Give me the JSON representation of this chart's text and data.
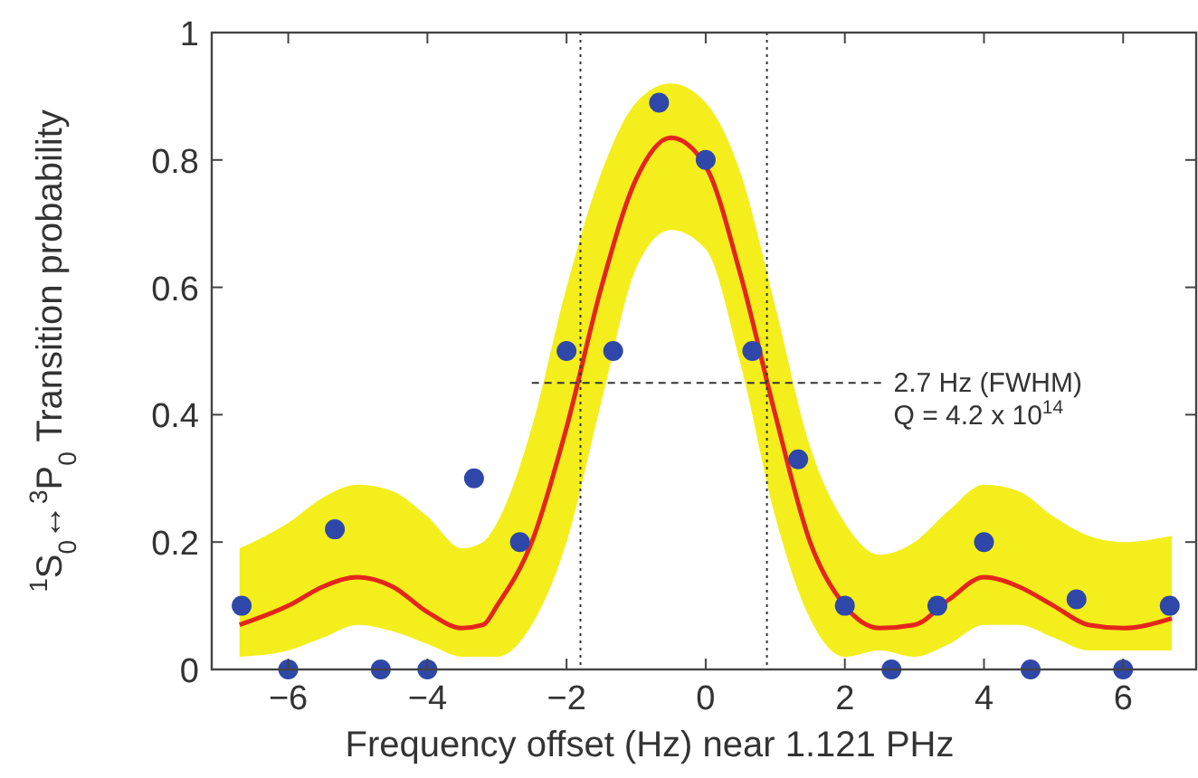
{
  "chart_data": {
    "type": "scatter",
    "xlabel": "Frequency offset (Hz) near 1.121 PHz",
    "ylabel": "$^{1}$S$_{0}$↔$^{3}$P$_{0}$ Transition probability",
    "xlim": [
      -7.1,
      7.05
    ],
    "ylim": [
      0,
      1
    ],
    "xticks": [
      {
        "value": -6,
        "label": "−6"
      },
      {
        "value": -4,
        "label": "−4"
      },
      {
        "value": -2,
        "label": "−2"
      },
      0,
      2,
      4,
      6
    ],
    "yticks": [
      0,
      0.2,
      0.4,
      0.6,
      0.8,
      1
    ],
    "grid": false,
    "series": [
      {
        "type": "line",
        "color": "#e3261c",
        "marker": "none",
        "line_style": "solid",
        "x": [
          -6.7,
          -6,
          -5.5,
          -5,
          -4.5,
          -4,
          -3.5,
          -3.2,
          -3,
          -2.5,
          -2,
          -1.5,
          -1,
          -0.5,
          0,
          0.5,
          1,
          1.5,
          2,
          2.5,
          3,
          3.5,
          4,
          4.5,
          5,
          5.5,
          6,
          6.7
        ],
        "values": [
          0.07,
          0.1,
          0.13,
          0.145,
          0.13,
          0.09,
          0.065,
          0.07,
          0.1,
          0.2,
          0.38,
          0.6,
          0.77,
          0.835,
          0.79,
          0.62,
          0.4,
          0.2,
          0.1,
          0.065,
          0.07,
          0.11,
          0.145,
          0.13,
          0.1,
          0.07,
          0.065,
          0.08
        ],
        "lower": [
          0.02,
          0.03,
          0.05,
          0.07,
          0.06,
          0.04,
          0.02,
          0.02,
          0.02,
          0.07,
          0.2,
          0.42,
          0.63,
          0.69,
          0.66,
          0.48,
          0.24,
          0.08,
          0.02,
          0.03,
          0.02,
          0.04,
          0.07,
          0.07,
          0.05,
          0.03,
          0.03,
          0.03
        ],
        "upper": [
          0.19,
          0.23,
          0.27,
          0.29,
          0.28,
          0.24,
          0.19,
          0.2,
          0.23,
          0.38,
          0.6,
          0.78,
          0.89,
          0.92,
          0.89,
          0.78,
          0.57,
          0.35,
          0.23,
          0.18,
          0.2,
          0.25,
          0.29,
          0.28,
          0.24,
          0.21,
          0.2,
          0.21
        ]
      },
      {
        "color": "#2e47a8",
        "marker": "circle",
        "x": [
          -6.67,
          -6,
          -5.33,
          -4.67,
          -4,
          -3.33,
          -2.67,
          -2,
          -1.33,
          -0.67,
          0,
          0.67,
          1.33,
          2,
          2.67,
          3.33,
          4,
          4.67,
          5.33,
          6,
          6.67
        ],
        "values": [
          0.1,
          0,
          0.22,
          0,
          0,
          0.3,
          0.2,
          0.5,
          0.5,
          0.89,
          0.8,
          0.5,
          0.33,
          0.1,
          0,
          0.1,
          0.2,
          0,
          0.11,
          0,
          0.1
        ]
      }
    ],
    "ref_lines": [
      {
        "axis": "x",
        "value": -1.8,
        "line_style": "dotted"
      },
      {
        "axis": "x",
        "value": 0.88,
        "line_style": "dotted"
      },
      {
        "axis": "y",
        "value": 0.45,
        "line_style": "dashed"
      }
    ],
    "annotations": [
      "2.7 Hz (FWHM)",
      "Q = 4.2 x 10$^{14}$"
    ]
  }
}
